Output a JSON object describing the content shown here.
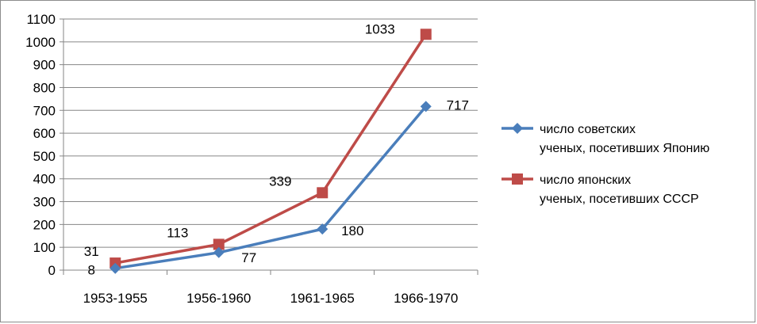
{
  "chart_data": {
    "type": "line",
    "title": "",
    "xlabel": "",
    "ylabel": "",
    "categories": [
      "1953-1955",
      "1956-1960",
      "1961-1965",
      "1966-1970"
    ],
    "ylim": [
      0,
      1100
    ],
    "yticks": [
      0,
      100,
      200,
      300,
      400,
      500,
      600,
      700,
      800,
      900,
      1000,
      1100
    ],
    "grid": true,
    "legend_position": "right",
    "series": [
      {
        "name": "число советских ученых, посетивших Японию",
        "name_lines": [
          "число советских",
          "ученых, посетивших Японию"
        ],
        "values": [
          8,
          77,
          180,
          717
        ],
        "labels": [
          "8",
          "77",
          "180",
          "717"
        ],
        "color": "#4a7ebb",
        "marker": "diamond"
      },
      {
        "name": "число японских ученых, посетивших СССР",
        "name_lines": [
          "число японских",
          "ученых, посетивших СССР"
        ],
        "values": [
          31,
          113,
          339,
          1033
        ],
        "labels": [
          "31",
          "113",
          "339",
          "1033"
        ],
        "color": "#be4b48",
        "marker": "square"
      }
    ]
  }
}
